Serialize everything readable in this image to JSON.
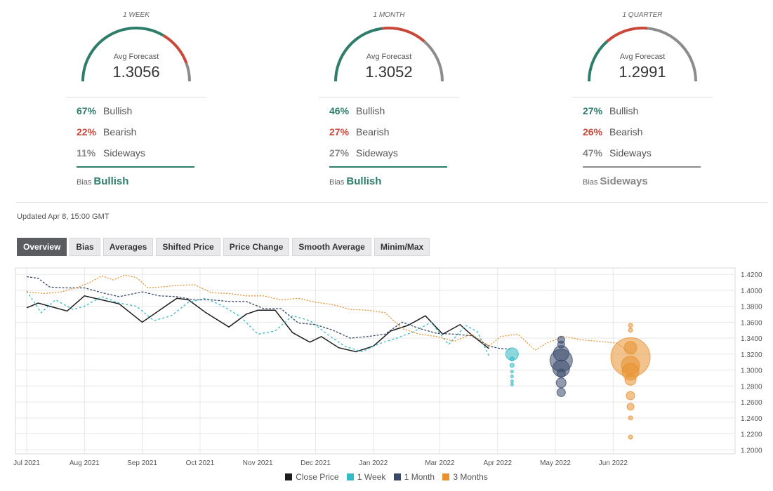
{
  "gauges": [
    {
      "period": "1 WEEK",
      "avg_label": "Avg Forecast",
      "avg_value": "1.3056",
      "bullish": 67,
      "bearish": 22,
      "sideways": 11,
      "bullish_pct": "67%",
      "bearish_pct": "22%",
      "sideways_pct": "11%",
      "bull_label": "Bullish",
      "bear_label": "Bearish",
      "side_label": "Sideways",
      "bias_label": "Bias",
      "bias": "Bullish"
    },
    {
      "period": "1 MONTH",
      "avg_label": "Avg Forecast",
      "avg_value": "1.3052",
      "bullish": 46,
      "bearish": 27,
      "sideways": 27,
      "bullish_pct": "46%",
      "bearish_pct": "27%",
      "sideways_pct": "27%",
      "bull_label": "Bullish",
      "bear_label": "Bearish",
      "side_label": "Sideways",
      "bias_label": "Bias",
      "bias": "Bullish"
    },
    {
      "period": "1 QUARTER",
      "avg_label": "Avg Forecast",
      "avg_value": "1.2991",
      "bullish": 27,
      "bearish": 26,
      "sideways": 47,
      "bullish_pct": "27%",
      "bearish_pct": "26%",
      "sideways_pct": "47%",
      "bull_label": "Bullish",
      "bear_label": "Bearish",
      "side_label": "Sideways",
      "bias_label": "Bias",
      "bias": "Sideways"
    }
  ],
  "updated": "Updated Apr 8, 15:00 GMT",
  "tabs": [
    "Overview",
    "Bias",
    "Averages",
    "Shifted Price",
    "Price Change",
    "Smooth Average",
    "Minim/Max"
  ],
  "colors": {
    "bullish": "#2e7d6b",
    "bearish": "#c9483a",
    "sideways": "#8c8c8c",
    "close": "#1d1d1f",
    "week": "#35b9c4",
    "month": "#3b4a6b",
    "quarter": "#e8912f"
  },
  "chart_data": {
    "type": "line",
    "x_ticks": [
      "Jul 2021",
      "Aug 2021",
      "Sep 2021",
      "Oct 2021",
      "Nov 2021",
      "Dec 2021",
      "Jan 2022",
      "Mar 2022",
      "Apr 2022",
      "May 2022",
      "Jun 2022"
    ],
    "y_ticks": [
      "1.4200",
      "1.4000",
      "1.3800",
      "1.3600",
      "1.3400",
      "1.3200",
      "1.3000",
      "1.2800",
      "1.2600",
      "1.2400",
      "1.2200",
      "1.2000"
    ],
    "ylim": [
      1.195,
      1.428
    ],
    "legend": [
      "Close Price",
      "1 Week",
      "1 Month",
      "3 Months"
    ],
    "series": [
      {
        "name": "Close Price",
        "color": "#1d1d1f",
        "dash": "",
        "x": [
          0,
          0.2,
          0.4,
          0.7,
          1,
          1.3,
          1.6,
          2,
          2.3,
          2.6,
          2.8,
          3.1,
          3.5,
          3.8,
          4,
          4.3,
          4.6,
          4.9,
          5.1,
          5.4,
          5.7,
          6,
          6.3,
          6.6,
          6.9,
          7.2,
          7.5,
          7.7,
          8
        ],
        "y": [
          1.378,
          1.384,
          1.38,
          1.374,
          1.393,
          1.388,
          1.383,
          1.36,
          1.375,
          1.39,
          1.388,
          1.372,
          1.354,
          1.37,
          1.375,
          1.375,
          1.347,
          1.335,
          1.342,
          1.328,
          1.323,
          1.33,
          1.349,
          1.356,
          1.368,
          1.345,
          1.357,
          1.344,
          1.327
        ]
      },
      {
        "name": "1 Week",
        "color": "#35b9c4",
        "dash": "3 3",
        "x": [
          0,
          0.25,
          0.5,
          0.8,
          1,
          1.3,
          1.6,
          1.9,
          2.2,
          2.5,
          2.8,
          3.1,
          3.4,
          3.7,
          4,
          4.3,
          4.6,
          4.9,
          5.2,
          5.5,
          5.8,
          6.1,
          6.4,
          6.7,
          7,
          7.3,
          7.6,
          7.8,
          8
        ],
        "y": [
          1.399,
          1.372,
          1.388,
          1.376,
          1.38,
          1.392,
          1.384,
          1.38,
          1.362,
          1.368,
          1.385,
          1.39,
          1.38,
          1.367,
          1.345,
          1.349,
          1.368,
          1.362,
          1.345,
          1.33,
          1.323,
          1.333,
          1.34,
          1.348,
          1.36,
          1.332,
          1.356,
          1.348,
          1.318
        ]
      },
      {
        "name": "1 Month",
        "color": "#3b4a6b",
        "dash": "3 2",
        "x": [
          0,
          0.2,
          0.4,
          0.7,
          1,
          1.3,
          1.6,
          2,
          2.3,
          2.6,
          2.9,
          3.2,
          3.5,
          3.8,
          4.1,
          4.4,
          4.7,
          5,
          5.3,
          5.6,
          5.9,
          6.2,
          6.5,
          6.8,
          7.1,
          7.4,
          7.7,
          8,
          8.2,
          8.4
        ],
        "y": [
          1.417,
          1.415,
          1.404,
          1.403,
          1.403,
          1.397,
          1.392,
          1.398,
          1.393,
          1.392,
          1.388,
          1.388,
          1.386,
          1.386,
          1.377,
          1.377,
          1.359,
          1.357,
          1.35,
          1.34,
          1.342,
          1.345,
          1.36,
          1.352,
          1.346,
          1.345,
          1.343,
          1.33,
          1.327,
          1.326
        ]
      },
      {
        "name": "3 Months",
        "color": "#e8912f",
        "dash": "2 2",
        "x": [
          0,
          0.3,
          0.6,
          0.9,
          1.1,
          1.3,
          1.5,
          1.7,
          1.9,
          2.1,
          2.3,
          2.6,
          2.9,
          3.2,
          3.5,
          3.8,
          4.1,
          4.4,
          4.7,
          5,
          5.3,
          5.6,
          5.9,
          6.2,
          6.5,
          6.8,
          7.1,
          7.4,
          7.7,
          8,
          8.2,
          8.5,
          8.8,
          9,
          9.3,
          9.6,
          9.9,
          10.2,
          10.5
        ],
        "y": [
          1.398,
          1.396,
          1.398,
          1.404,
          1.41,
          1.418,
          1.413,
          1.419,
          1.416,
          1.403,
          1.404,
          1.406,
          1.407,
          1.397,
          1.396,
          1.393,
          1.393,
          1.388,
          1.39,
          1.385,
          1.382,
          1.376,
          1.375,
          1.372,
          1.352,
          1.345,
          1.342,
          1.336,
          1.345,
          1.33,
          1.342,
          1.345,
          1.325,
          1.334,
          1.342,
          1.338,
          1.336,
          1.334,
          1.32
        ]
      }
    ],
    "bubbles": [
      {
        "series": "1 Week",
        "x": 8.4,
        "values": [
          1.32,
          1.314,
          1.306,
          1.298,
          1.292,
          1.286,
          1.282
        ],
        "sizes": [
          9,
          3,
          3,
          2,
          2,
          2,
          2
        ]
      },
      {
        "series": "1 Month",
        "x": 9.25,
        "values": [
          1.338,
          1.332,
          1.321,
          1.312,
          1.302,
          1.296,
          1.284,
          1.272
        ],
        "sizes": [
          5,
          5,
          11,
          16,
          12,
          6,
          7,
          6
        ]
      },
      {
        "series": "3 Months",
        "x": 10.45,
        "values": [
          1.356,
          1.35,
          1.328,
          1.316,
          1.306,
          1.298,
          1.288,
          1.268,
          1.254,
          1.24,
          1.216
        ],
        "sizes": [
          3,
          3,
          9,
          28,
          13,
          12,
          8,
          6,
          5,
          3,
          3
        ]
      }
    ],
    "grid": true,
    "legend_position": "bottom"
  }
}
